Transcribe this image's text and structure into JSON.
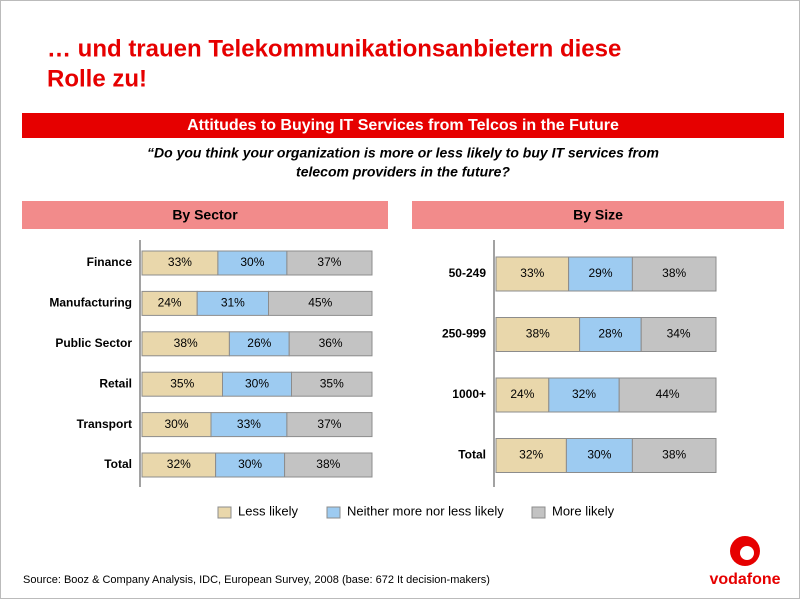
{
  "title": [
    "… und trauen Telekommunikationsanbietern diese",
    "Rolle zu!"
  ],
  "banner": "Attitudes to Buying IT Services from Telcos in the Future",
  "question": [
    "“Do you think your organization is more or less likely to buy IT services from",
    "telecom providers in the future?"
  ],
  "source": "Source: Booz & Company Analysis, IDC, European Survey, 2008 (base: 672 It decision-makers)",
  "logo": "vodafone",
  "chart_data": [
    {
      "type": "bar",
      "orientation": "horizontal",
      "stacked": true,
      "title": "By Sector",
      "categories": [
        "Finance",
        "Manufacturing",
        "Public Sector",
        "Retail",
        "Transport",
        "Total"
      ],
      "xlim": [
        0,
        100
      ],
      "legend": "bottom",
      "series": [
        {
          "name": "Less likely",
          "color": "#e9d7ab",
          "values": [
            33,
            24,
            38,
            35,
            30,
            32
          ],
          "value_labels": [
            "33%",
            "24%",
            "38%",
            "35%",
            "30%",
            "32%"
          ]
        },
        {
          "name": "Neither more nor less likely",
          "color": "#9dcbf1",
          "values": [
            30,
            31,
            26,
            30,
            33,
            30
          ],
          "value_labels": [
            "30%",
            "31%",
            "26%",
            "30%",
            "33%",
            "30%"
          ]
        },
        {
          "name": "More likely",
          "color": "#c3c3c3",
          "values": [
            37,
            45,
            36,
            35,
            37,
            38
          ],
          "value_labels": [
            "37%",
            "45%",
            "36%",
            "35%",
            "37%",
            "38%"
          ]
        }
      ]
    },
    {
      "type": "bar",
      "orientation": "horizontal",
      "stacked": true,
      "title": "By Size",
      "categories": [
        "50-249",
        "250-999",
        "1000+",
        "Total"
      ],
      "xlim": [
        0,
        100
      ],
      "series": [
        {
          "color": "#e9d7ab",
          "values": [
            33,
            38,
            24,
            32
          ],
          "value_labels": [
            "33%",
            "38%",
            "24%",
            "32%"
          ]
        },
        {
          "color": "#9dcbf1",
          "values": [
            29,
            28,
            32,
            30
          ],
          "value_labels": [
            "29%",
            "28%",
            "32%",
            "30%"
          ]
        },
        {
          "color": "#c3c3c3",
          "values": [
            38,
            34,
            44,
            38
          ],
          "value_labels": [
            "38%",
            "34%",
            "44%",
            "38%"
          ]
        }
      ]
    }
  ]
}
